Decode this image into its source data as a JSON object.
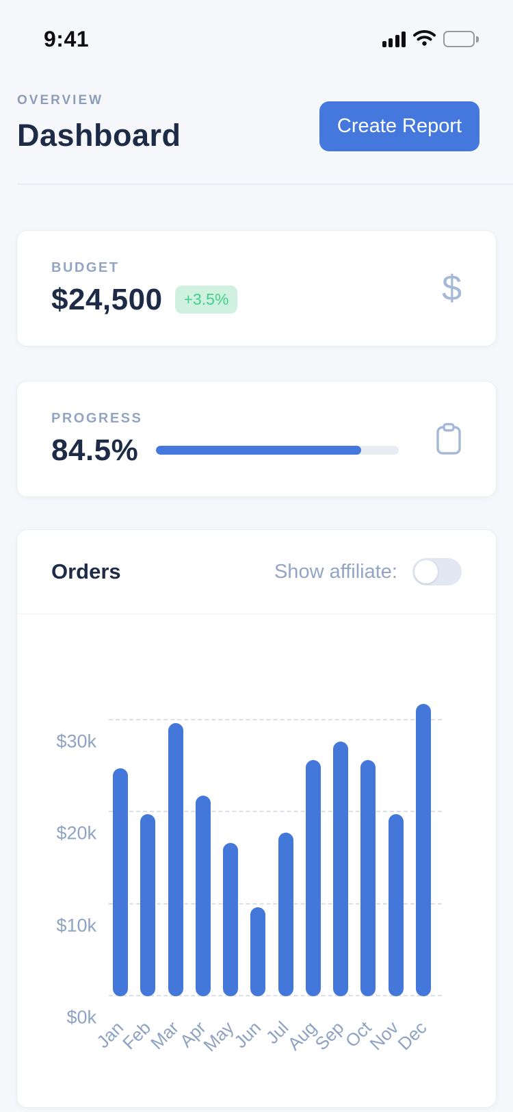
{
  "status_bar": {
    "time": "9:41",
    "icons": [
      "cellular-signal-icon",
      "wifi-icon",
      "battery-icon"
    ]
  },
  "header": {
    "eyebrow": "OVERVIEW",
    "title": "Dashboard",
    "create_report_label": "Create Report"
  },
  "cards": {
    "budget": {
      "label": "BUDGET",
      "value": "$24,500",
      "delta": "+3.5%",
      "icon": "dollar-icon"
    },
    "progress": {
      "label": "PROGRESS",
      "value": "84.5%",
      "percent": 84.5,
      "icon": "clipboard-icon"
    },
    "orders": {
      "title": "Orders",
      "toggle_label": "Show affiliate:",
      "toggle_state": "off"
    }
  },
  "chart_data": {
    "type": "bar",
    "title": "Orders",
    "categories": [
      "Jan",
      "Feb",
      "Mar",
      "Apr",
      "May",
      "Jun",
      "Jul",
      "Aug",
      "Sep",
      "Oct",
      "Nov",
      "Dec"
    ],
    "values": [
      24.8,
      19.8,
      29.7,
      21.8,
      16.7,
      9.7,
      17.8,
      25.7,
      27.7,
      25.7,
      19.8,
      31.8
    ],
    "unit": "USD thousands",
    "xlabel": "",
    "ylabel": "",
    "yticks": [
      0,
      10,
      20,
      30
    ],
    "ytick_labels": [
      "$0k",
      "$10k",
      "$20k",
      "$30k"
    ],
    "ylim": [
      0,
      35
    ],
    "bar_color": "#4377d9",
    "grid": "horizontal-dashed",
    "legend": "none",
    "x_label_rotation": -45
  },
  "colors": {
    "page_bg": "#f6f7fa",
    "card_bg": "#ffffff",
    "accent_blue": "#4478dd",
    "bar_blue": "#4377d9",
    "navy_text": "#1d2b47",
    "muted_label": "#93a5c3",
    "badge_green_text": "#41d08a",
    "badge_green_bg": "#d0f1df",
    "icon_stroke": "#a6b8d8",
    "track_gray": "#e8ecf3",
    "gridline": "#dadfe8"
  }
}
